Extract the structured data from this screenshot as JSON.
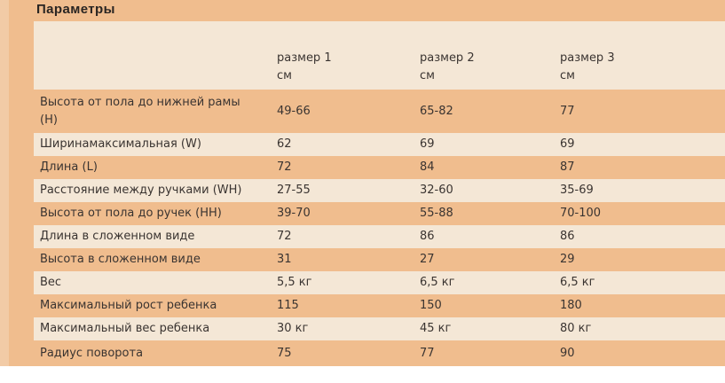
{
  "title": "Параметры",
  "columns": [
    {
      "label": "размер 1",
      "unit": "см"
    },
    {
      "label": "размер 2",
      "unit": "см"
    },
    {
      "label": "размер 3",
      "unit": "см"
    }
  ],
  "rows": [
    {
      "label": "Высота от пола до нижней рамы\n(H)",
      "values": [
        "49-66",
        "65-82",
        "77"
      ]
    },
    {
      "label": "Ширинамаксимальная (W)",
      "values": [
        "62",
        "69",
        "69"
      ]
    },
    {
      "label": "Длина (L)",
      "values": [
        "72",
        "84",
        "87"
      ]
    },
    {
      "label": "Расстояние между ручками (WH)",
      "values": [
        "27-55",
        "32-60",
        "35-69"
      ]
    },
    {
      "label": "Высота от пола до ручек (HH)",
      "values": [
        "39-70",
        "55-88",
        "70-100"
      ]
    },
    {
      "label": "Длина в сложенном виде",
      "values": [
        "72",
        "86",
        "86"
      ]
    },
    {
      "label": "Высота в сложенном виде",
      "values": [
        "31",
        "27",
        "29"
      ]
    },
    {
      "label": "Вес",
      "values": [
        "5,5 кг",
        "6,5 кг",
        "6,5 кг"
      ]
    },
    {
      "label": "Максимальный рост ребенка",
      "values": [
        "115",
        "150",
        "180"
      ]
    },
    {
      "label": "Максимальный вес ребенка",
      "values": [
        "30 кг",
        "45 кг",
        "80 кг"
      ]
    },
    {
      "label": "Радиус поворота",
      "values": [
        "75",
        "77",
        "90"
      ]
    }
  ],
  "colors": {
    "panel_background": "#f0bd8e",
    "stripe_row": "#f4e7d6",
    "left_edge_strip": "#f2cba6",
    "text": "#3a3431",
    "title_text": "#2a2522"
  }
}
